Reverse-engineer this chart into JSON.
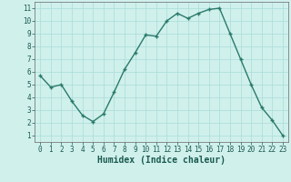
{
  "title": "",
  "xlabel": "Humidex (Indice chaleur)",
  "x": [
    0,
    1,
    2,
    3,
    4,
    5,
    6,
    7,
    8,
    9,
    10,
    11,
    12,
    13,
    14,
    15,
    16,
    17,
    18,
    19,
    20,
    21,
    22,
    23
  ],
  "y": [
    5.7,
    4.8,
    5.0,
    3.7,
    2.6,
    2.1,
    2.7,
    4.4,
    6.2,
    7.5,
    8.9,
    8.8,
    10.0,
    10.6,
    10.2,
    10.6,
    10.9,
    11.0,
    9.0,
    7.0,
    5.0,
    3.2,
    2.2,
    1.0
  ],
  "line_color": "#2a7a6a",
  "bg_color": "#d0f0ec",
  "grid_color": "#a8ddd8",
  "ylim": [
    0.5,
    11.5
  ],
  "xlim": [
    -0.5,
    23.5
  ],
  "yticks": [
    1,
    2,
    3,
    4,
    5,
    6,
    7,
    8,
    9,
    10,
    11
  ],
  "xticks": [
    0,
    1,
    2,
    3,
    4,
    5,
    6,
    7,
    8,
    9,
    10,
    11,
    12,
    13,
    14,
    15,
    16,
    17,
    18,
    19,
    20,
    21,
    22,
    23
  ],
  "marker": "+",
  "marker_size": 3,
  "line_width": 1.0,
  "xlabel_fontsize": 7,
  "tick_fontsize": 5.5
}
